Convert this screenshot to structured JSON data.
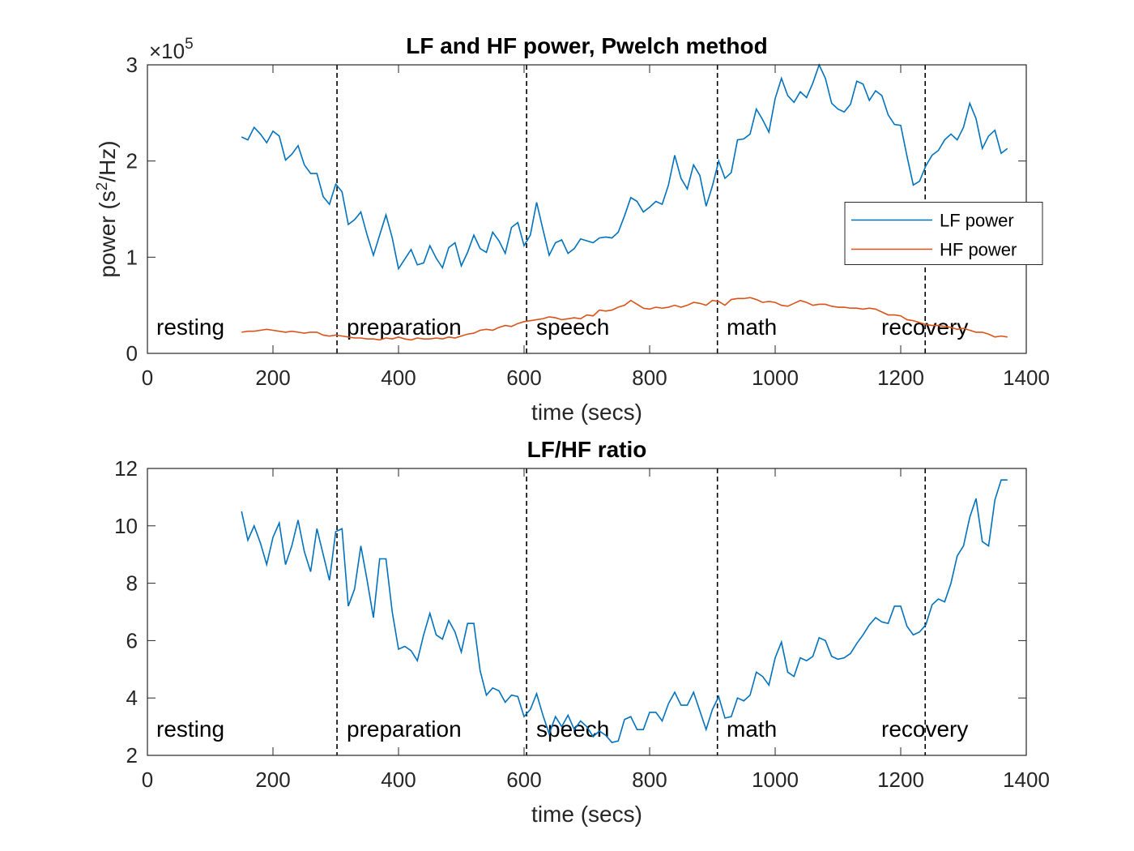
{
  "chart_data": [
    {
      "type": "line",
      "title": "LF and HF power, Pwelch method",
      "xlabel": "time (secs)",
      "ylabel": [
        "power (s",
        "2",
        "/Hz)"
      ],
      "y_exponent": [
        "×10",
        "5"
      ],
      "xlim": [
        0,
        1400
      ],
      "xticks": [
        0,
        200,
        400,
        600,
        800,
        1000,
        1200,
        1400
      ],
      "ylim": [
        0,
        3
      ],
      "yticks": [
        0,
        1,
        2,
        3
      ],
      "legend": "east",
      "phase_boundaries": [
        302,
        604,
        908,
        1239
      ],
      "annotations": [
        "resting",
        "preparation",
        "speech",
        "math",
        "recovery"
      ],
      "x": [
        150,
        160,
        170,
        180,
        190,
        200,
        210,
        220,
        230,
        240,
        250,
        260,
        270,
        280,
        290,
        300,
        310,
        320,
        330,
        340,
        350,
        360,
        370,
        380,
        390,
        400,
        410,
        420,
        430,
        440,
        450,
        460,
        470,
        480,
        490,
        500,
        510,
        520,
        530,
        540,
        550,
        560,
        570,
        580,
        590,
        600,
        610,
        620,
        630,
        640,
        650,
        660,
        670,
        680,
        690,
        700,
        710,
        720,
        730,
        740,
        750,
        760,
        770,
        780,
        790,
        800,
        810,
        820,
        830,
        840,
        850,
        860,
        870,
        880,
        890,
        900,
        910,
        920,
        930,
        940,
        950,
        960,
        970,
        980,
        990,
        1000,
        1010,
        1020,
        1030,
        1040,
        1050,
        1060,
        1070,
        1080,
        1090,
        1100,
        1110,
        1120,
        1130,
        1140,
        1150,
        1160,
        1170,
        1180,
        1190,
        1200,
        1210,
        1220,
        1230,
        1240,
        1250,
        1260,
        1270,
        1280,
        1290,
        1300,
        1310,
        1320,
        1330,
        1340,
        1350,
        1360,
        1370
      ],
      "series": [
        {
          "name": "LF power",
          "color": "#0072BD",
          "values": [
            2.25,
            2.22,
            2.35,
            2.28,
            2.19,
            2.31,
            2.26,
            2.01,
            2.07,
            2.16,
            1.96,
            1.87,
            1.87,
            1.63,
            1.55,
            1.76,
            1.68,
            1.34,
            1.39,
            1.47,
            1.23,
            1.02,
            1.23,
            1.44,
            1.2,
            0.88,
            0.98,
            1.08,
            0.92,
            0.94,
            1.12,
            0.99,
            0.89,
            1.1,
            1.15,
            0.91,
            1.05,
            1.23,
            1.09,
            1.05,
            1.26,
            1.17,
            1.04,
            1.31,
            1.36,
            1.12,
            1.23,
            1.57,
            1.29,
            1.02,
            1.15,
            1.18,
            1.04,
            1.09,
            1.19,
            1.17,
            1.15,
            1.2,
            1.21,
            1.2,
            1.26,
            1.43,
            1.62,
            1.58,
            1.47,
            1.52,
            1.58,
            1.55,
            1.75,
            2.06,
            1.82,
            1.71,
            1.96,
            1.85,
            1.53,
            1.74,
            2.0,
            1.82,
            1.88,
            2.22,
            2.23,
            2.28,
            2.54,
            2.43,
            2.3,
            2.65,
            2.86,
            2.68,
            2.61,
            2.72,
            2.66,
            2.81,
            3.0,
            2.86,
            2.6,
            2.54,
            2.51,
            2.59,
            2.83,
            2.8,
            2.63,
            2.73,
            2.68,
            2.48,
            2.38,
            2.37,
            2.05,
            1.75,
            1.79,
            1.95,
            2.06,
            2.11,
            2.22,
            2.28,
            2.22,
            2.35,
            2.6,
            2.44,
            2.13,
            2.26,
            2.32,
            2.08,
            2.13
          ]
        },
        {
          "name": "HF power",
          "color": "#D95319",
          "values": [
            0.22,
            0.23,
            0.23,
            0.24,
            0.25,
            0.24,
            0.23,
            0.22,
            0.23,
            0.22,
            0.21,
            0.22,
            0.22,
            0.19,
            0.18,
            0.19,
            0.18,
            0.17,
            0.16,
            0.16,
            0.15,
            0.15,
            0.14,
            0.16,
            0.15,
            0.17,
            0.15,
            0.14,
            0.16,
            0.15,
            0.15,
            0.16,
            0.15,
            0.17,
            0.16,
            0.18,
            0.2,
            0.21,
            0.24,
            0.25,
            0.24,
            0.27,
            0.29,
            0.28,
            0.31,
            0.33,
            0.34,
            0.35,
            0.36,
            0.38,
            0.37,
            0.35,
            0.36,
            0.37,
            0.36,
            0.4,
            0.39,
            0.45,
            0.44,
            0.45,
            0.48,
            0.5,
            0.55,
            0.51,
            0.47,
            0.46,
            0.48,
            0.47,
            0.48,
            0.5,
            0.48,
            0.5,
            0.53,
            0.52,
            0.5,
            0.55,
            0.54,
            0.5,
            0.56,
            0.57,
            0.57,
            0.58,
            0.56,
            0.53,
            0.54,
            0.53,
            0.5,
            0.49,
            0.52,
            0.55,
            0.53,
            0.5,
            0.51,
            0.51,
            0.49,
            0.48,
            0.48,
            0.47,
            0.47,
            0.46,
            0.47,
            0.46,
            0.43,
            0.4,
            0.4,
            0.39,
            0.35,
            0.34,
            0.32,
            0.3,
            0.29,
            0.29,
            0.28,
            0.27,
            0.25,
            0.26,
            0.24,
            0.22,
            0.22,
            0.2,
            0.17,
            0.18,
            0.17
          ]
        }
      ]
    },
    {
      "type": "line",
      "title": "LF/HF ratio",
      "xlabel": "time (secs)",
      "xlim": [
        0,
        1400
      ],
      "xticks": [
        0,
        200,
        400,
        600,
        800,
        1000,
        1200,
        1400
      ],
      "ylim": [
        2,
        12
      ],
      "yticks": [
        2,
        4,
        6,
        8,
        10,
        12
      ],
      "phase_boundaries": [
        302,
        604,
        908,
        1239
      ],
      "annotations": [
        "resting",
        "preparation",
        "speech",
        "math",
        "recovery"
      ],
      "x": [
        150,
        160,
        170,
        180,
        190,
        200,
        210,
        220,
        230,
        240,
        250,
        260,
        270,
        280,
        290,
        300,
        310,
        320,
        330,
        340,
        350,
        360,
        370,
        380,
        390,
        400,
        410,
        420,
        430,
        440,
        450,
        460,
        470,
        480,
        490,
        500,
        510,
        520,
        530,
        540,
        550,
        560,
        570,
        580,
        590,
        600,
        610,
        620,
        630,
        640,
        650,
        660,
        670,
        680,
        690,
        700,
        710,
        720,
        730,
        740,
        750,
        760,
        770,
        780,
        790,
        800,
        810,
        820,
        830,
        840,
        850,
        860,
        870,
        880,
        890,
        900,
        910,
        920,
        930,
        940,
        950,
        960,
        970,
        980,
        990,
        1000,
        1010,
        1020,
        1030,
        1040,
        1050,
        1060,
        1070,
        1080,
        1090,
        1100,
        1110,
        1120,
        1130,
        1140,
        1150,
        1160,
        1170,
        1180,
        1190,
        1200,
        1210,
        1220,
        1230,
        1240,
        1250,
        1260,
        1270,
        1280,
        1290,
        1300,
        1310,
        1320,
        1330,
        1340,
        1350,
        1360,
        1370
      ],
      "series": [
        {
          "color": "#0072BD",
          "values": [
            10.5,
            9.5,
            10.0,
            9.4,
            8.65,
            9.6,
            10.1,
            8.65,
            9.3,
            10.2,
            9.1,
            8.4,
            9.9,
            9.0,
            8.1,
            9.8,
            9.9,
            7.2,
            7.8,
            9.3,
            8.1,
            6.8,
            8.85,
            8.85,
            7.0,
            5.7,
            5.8,
            5.65,
            5.3,
            6.2,
            6.95,
            6.2,
            6.05,
            6.7,
            6.3,
            5.6,
            6.6,
            6.6,
            4.95,
            4.1,
            4.35,
            4.25,
            3.85,
            4.1,
            4.05,
            3.35,
            3.6,
            4.15,
            3.4,
            2.75,
            3.35,
            3.0,
            3.4,
            2.9,
            3.2,
            3.0,
            2.65,
            2.85,
            2.7,
            2.45,
            2.5,
            3.25,
            3.35,
            2.9,
            2.9,
            3.5,
            3.5,
            3.2,
            3.8,
            4.2,
            3.75,
            3.75,
            4.2,
            3.55,
            2.9,
            3.6,
            4.05,
            3.3,
            3.35,
            4.0,
            3.9,
            4.1,
            4.9,
            4.75,
            4.45,
            5.4,
            5.95,
            4.9,
            4.75,
            5.4,
            5.3,
            5.45,
            6.1,
            6.0,
            5.45,
            5.35,
            5.4,
            5.55,
            5.9,
            6.2,
            6.55,
            6.8,
            6.65,
            6.6,
            7.2,
            7.2,
            6.5,
            6.2,
            6.3,
            6.55,
            7.25,
            7.45,
            7.35,
            8.0,
            8.95,
            9.3,
            10.3,
            10.95,
            9.45,
            9.3,
            10.9,
            11.6,
            11.6
          ]
        }
      ]
    }
  ]
}
